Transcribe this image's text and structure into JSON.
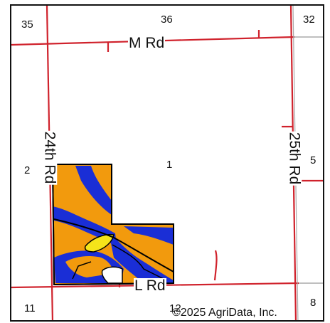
{
  "sections": {
    "s35": "35",
    "s36": "36",
    "s32": "32",
    "s2": "2",
    "s1": "1",
    "s5": "5",
    "s11": "11",
    "s12": "12",
    "s8": "8"
  },
  "roads": {
    "m_rd": "M Rd",
    "l_rd": "L Rd",
    "rd_24th": "24th Rd",
    "rd_25th": "25th Rd"
  },
  "copyright": "©2025 AgriData, Inc.",
  "colors": {
    "road": "#d0222c",
    "soil_orange": "#f29a0d",
    "soil_blue": "#1a2ed6",
    "soil_yellow": "#f5e41a"
  }
}
